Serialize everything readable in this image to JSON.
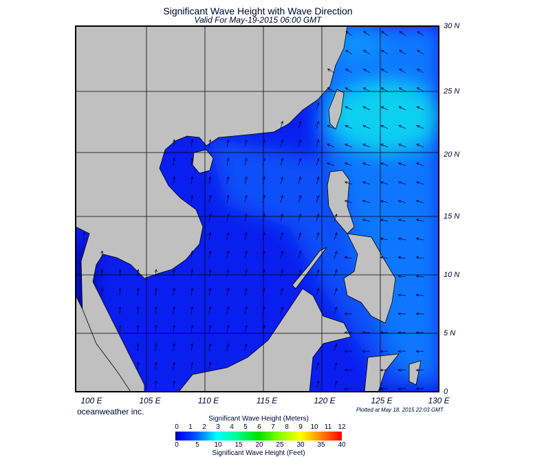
{
  "title": "Significant Wave Height with Wave Direction",
  "subtitle": "Valid For May-19-2015 06:00 GMT",
  "map": {
    "lon_labels": [
      "100 E",
      "105 E",
      "110 E",
      "115 E",
      "120 E",
      "125 E",
      "130 E"
    ],
    "lat_labels": [
      "30 N",
      "25 N",
      "20 N",
      "15 N",
      "10 N",
      "5 N",
      "0"
    ],
    "extent": {
      "lon": [
        99,
        130
      ],
      "lat": [
        0,
        30
      ]
    },
    "colors": {
      "land": "#c0c0c0",
      "sea_low": "#0a1ef0",
      "sea_mid": "#0a6cff",
      "sea_high": "#10d8f0"
    }
  },
  "credit": "oceanweather inc.",
  "plotted": "Plotted at May 18, 2015 22:03 GMT",
  "colorbar": {
    "title_top": "Significant Wave Height (Meters)",
    "title_bottom": "Significant Wave Height (Feet)",
    "meters": [
      "0",
      "1",
      "2",
      "3",
      "4",
      "5",
      "6",
      "7",
      "8",
      "9",
      "10",
      "11",
      "12"
    ],
    "feet": [
      "0",
      "5",
      "10",
      "15",
      "20",
      "25",
      "30",
      "35",
      "40"
    ]
  }
}
